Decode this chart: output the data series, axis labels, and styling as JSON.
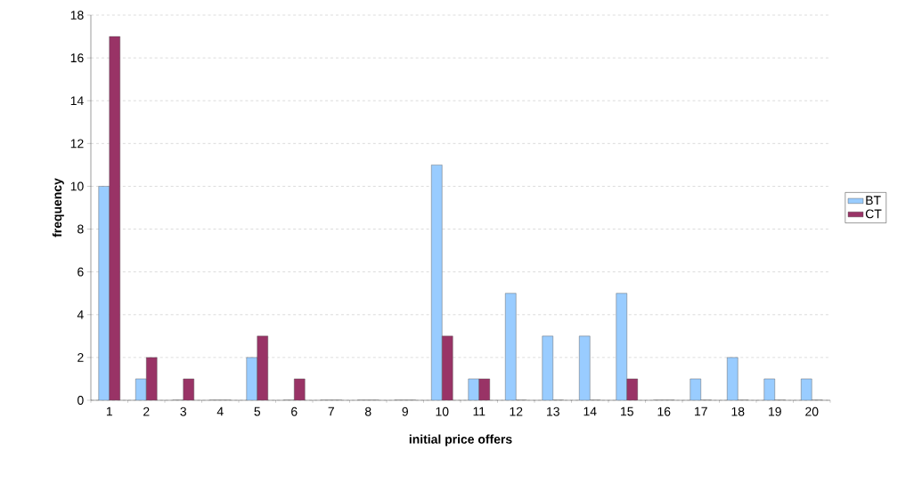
{
  "chart_data": {
    "type": "bar",
    "xlabel": "initial price offers",
    "ylabel": "frequency",
    "categories": [
      "1",
      "2",
      "3",
      "4",
      "5",
      "6",
      "7",
      "8",
      "9",
      "10",
      "11",
      "12",
      "13",
      "14",
      "15",
      "16",
      "17",
      "18",
      "19",
      "20"
    ],
    "series": [
      {
        "name": "BT",
        "color": "#99ccff",
        "values": [
          10,
          1,
          0,
          0,
          2,
          0,
          0,
          0,
          0,
          11,
          1,
          5,
          3,
          3,
          5,
          0,
          1,
          2,
          1,
          1
        ]
      },
      {
        "name": "CT",
        "color": "#993366",
        "values": [
          17,
          2,
          1,
          0,
          3,
          1,
          0,
          0,
          0,
          3,
          1,
          0,
          0,
          0,
          1,
          0,
          0,
          0,
          0,
          0
        ]
      }
    ],
    "ylim": [
      0,
      18
    ],
    "yticks": [
      0,
      2,
      4,
      6,
      8,
      10,
      12,
      14,
      16,
      18
    ],
    "grid": "y",
    "legend": "right"
  }
}
